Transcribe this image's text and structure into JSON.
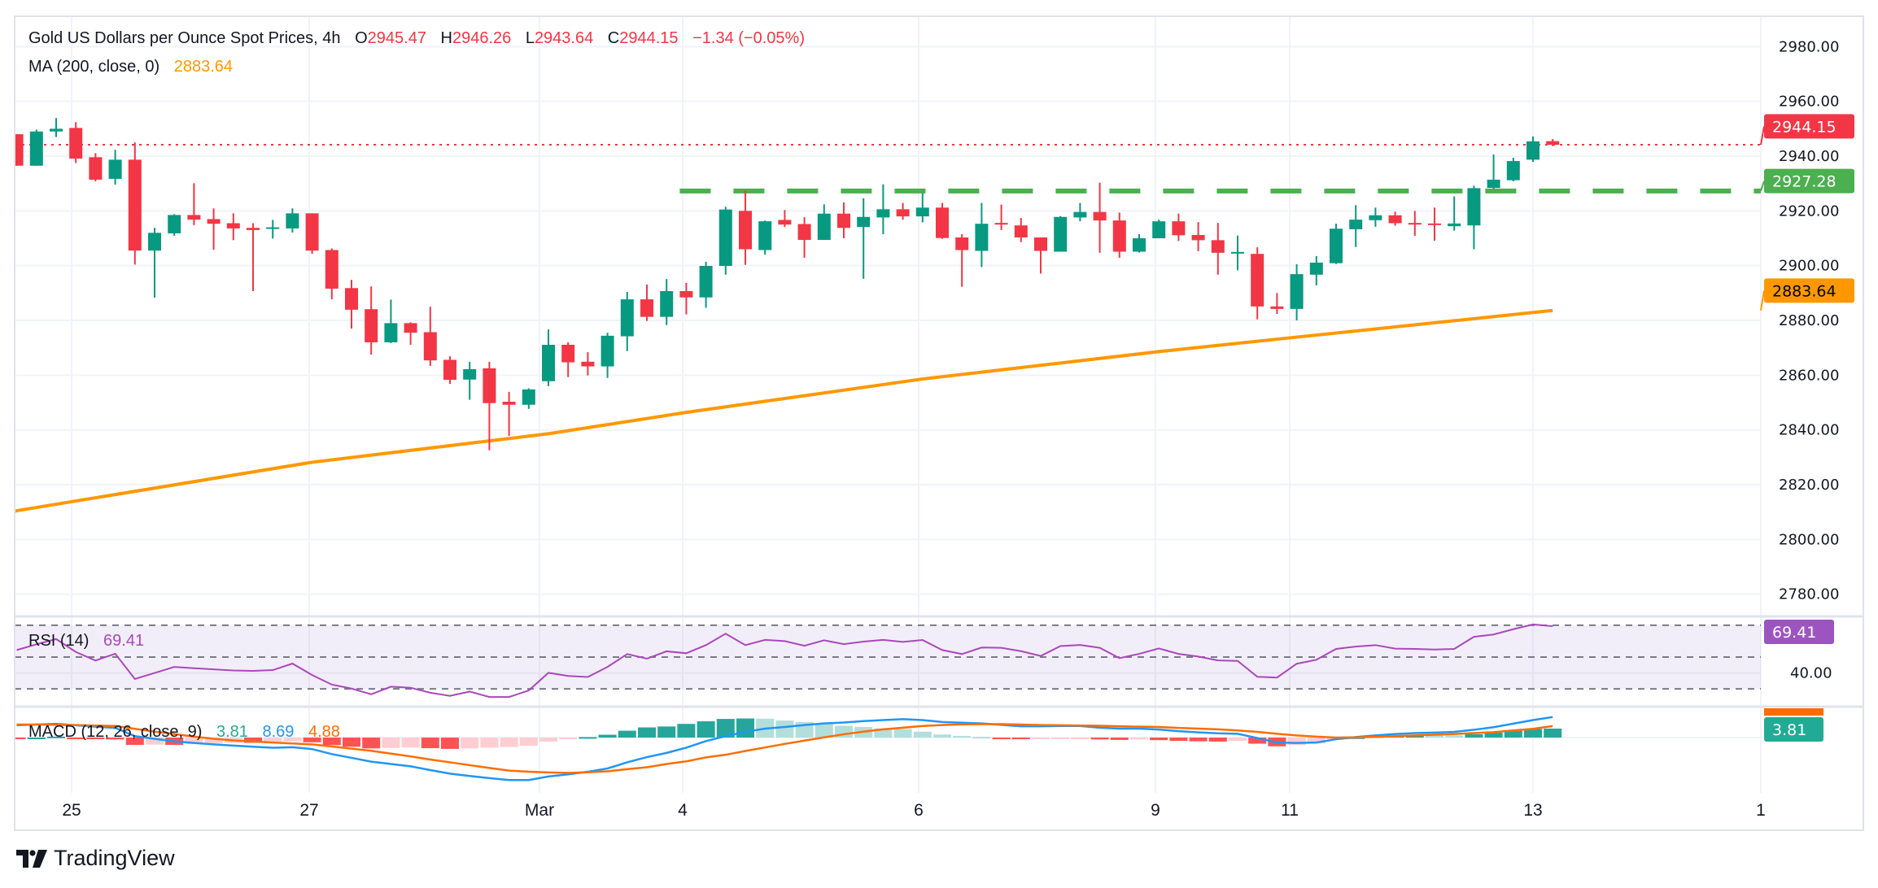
{
  "header": {
    "title": "Gold US Dollars per Ounce Spot Prices, 4h",
    "o_label": "O",
    "o": "2945.47",
    "h_label": "H",
    "h": "2946.26",
    "l_label": "L",
    "l": "2943.64",
    "c_label": "C",
    "c": "2944.15",
    "change": "−1.34 (−0.05%)"
  },
  "ma_legend": {
    "label": "MA (200, close, 0)",
    "value": "2883.64"
  },
  "rsi_legend": {
    "label": "RSI (14)",
    "value": "69.41"
  },
  "macd_legend": {
    "label": "MACD (12, 26, close, 9)",
    "hist": "3.81",
    "macd": "8.69",
    "signal": "4.88"
  },
  "price_axis": {
    "ticks": [
      "2780.00",
      "2800.00",
      "2820.00",
      "2840.00",
      "2860.00",
      "2880.00",
      "2900.00",
      "2920.00",
      "2940.00",
      "2960.00",
      "2980.00"
    ]
  },
  "rsi_axis": {
    "ticks": [
      "40.00"
    ]
  },
  "badges": {
    "last": "2944.15",
    "level": "2927.28",
    "ma": "2883.64",
    "rsi": "69.41",
    "macd": "3.81"
  },
  "time_axis": {
    "labels": [
      "25",
      "27",
      "Mar",
      "4",
      "6",
      "9",
      "11",
      "13",
      "1"
    ]
  },
  "branding": "TradingView",
  "colors": {
    "up": "#089981",
    "down": "#f23645",
    "ma": "#ff9800",
    "level": "#4caf50",
    "rsi": "#ab47bc",
    "macd": "#2196f3",
    "signal": "#ff6d00",
    "hist_up_strong": "#26a69a",
    "hist_up_weak": "#b2dfdb",
    "hist_down_strong": "#ff5252",
    "hist_down_weak": "#ffcdd2"
  },
  "chart_data": [
    {
      "type": "candlestick",
      "title": "Gold US Dollars per Ounce Spot Prices, 4h",
      "ylim": [
        2770,
        2990
      ],
      "grid": true,
      "ohlc": [
        [
          2948,
          2948,
          2936.5,
          2936.5
        ],
        [
          2936.5,
          2949.7,
          2936.5,
          2949
        ],
        [
          2949,
          2953.9,
          2947,
          2950
        ],
        [
          2950.3,
          2952.4,
          2937.5,
          2939.1
        ],
        [
          2939.6,
          2941.1,
          2930.8,
          2931.4
        ],
        [
          2931.7,
          2942.3,
          2929.6,
          2938.7
        ],
        [
          2938.7,
          2945,
          2900.4,
          2905.5
        ],
        [
          2905.5,
          2913.8,
          2888.3,
          2912
        ],
        [
          2911.8,
          2918.8,
          2910.9,
          2918.5
        ],
        [
          2918.5,
          2930.1,
          2914.8,
          2916.8
        ],
        [
          2917,
          2920.9,
          2905.8,
          2915.3
        ],
        [
          2915.5,
          2919.1,
          2909.3,
          2913.6
        ],
        [
          2913.8,
          2915.5,
          2890.7,
          2913
        ],
        [
          2913.6,
          2916.7,
          2909.9,
          2914
        ],
        [
          2913.6,
          2920.9,
          2912.1,
          2919.1
        ],
        [
          2919.1,
          2919.1,
          2904.3,
          2905.5
        ],
        [
          2905.7,
          2906.3,
          2887.7,
          2891.6
        ],
        [
          2891.8,
          2894.8,
          2877,
          2883.9
        ],
        [
          2884.1,
          2892.4,
          2867.5,
          2872
        ],
        [
          2872,
          2887.6,
          2871.7,
          2879
        ],
        [
          2879,
          2879.3,
          2871.1,
          2875.5
        ],
        [
          2875.7,
          2885,
          2863.4,
          2865.4
        ],
        [
          2865.6,
          2866.9,
          2856.8,
          2858.3
        ],
        [
          2858.4,
          2864.9,
          2851,
          2862.2
        ],
        [
          2862.5,
          2864.9,
          2832.6,
          2849.8
        ],
        [
          2850.3,
          2853.9,
          2837.8,
          2849.2
        ],
        [
          2849.2,
          2855.2,
          2847.7,
          2854.8
        ],
        [
          2857.8,
          2876.7,
          2856,
          2871.1
        ],
        [
          2871.1,
          2872,
          2859.3,
          2864.7
        ],
        [
          2864.9,
          2868.4,
          2859.9,
          2863.2
        ],
        [
          2863.2,
          2875.5,
          2859,
          2874.4
        ],
        [
          2874.2,
          2890.4,
          2868.8,
          2887.7
        ],
        [
          2887.7,
          2893.1,
          2879.8,
          2881.3
        ],
        [
          2881.3,
          2895.1,
          2878.3,
          2890.7
        ],
        [
          2890.7,
          2893.7,
          2882.2,
          2888.4
        ],
        [
          2888.4,
          2901.4,
          2884.6,
          2899.9
        ],
        [
          2899.9,
          2921.5,
          2896.7,
          2920.5
        ],
        [
          2920,
          2927.5,
          2900.3,
          2906
        ],
        [
          2905.7,
          2916.5,
          2904,
          2916.2
        ],
        [
          2916.7,
          2920.3,
          2914.1,
          2915
        ],
        [
          2915.2,
          2917.7,
          2902.9,
          2909.4
        ],
        [
          2909.4,
          2922.4,
          2909.4,
          2919
        ],
        [
          2919,
          2923.1,
          2910,
          2913.8
        ],
        [
          2914.1,
          2924.6,
          2895.2,
          2917.8
        ],
        [
          2917.6,
          2929.7,
          2911.5,
          2920.6
        ],
        [
          2920.6,
          2922.9,
          2916.8,
          2918
        ],
        [
          2918,
          2926.5,
          2915.8,
          2921.2
        ],
        [
          2921.2,
          2922.9,
          2909.8,
          2910.1
        ],
        [
          2910.3,
          2911.5,
          2892.3,
          2905.7
        ],
        [
          2905.4,
          2922.9,
          2899.5,
          2915.3
        ],
        [
          2915.6,
          2922.3,
          2913,
          2915
        ],
        [
          2914.7,
          2917.4,
          2908.6,
          2910.3
        ],
        [
          2910.3,
          2910.3,
          2897.1,
          2905.4
        ],
        [
          2905.1,
          2918.1,
          2905.1,
          2917.8
        ],
        [
          2917.6,
          2922.9,
          2916.2,
          2919.6
        ],
        [
          2919.6,
          2930.3,
          2904.7,
          2916.5
        ],
        [
          2916.5,
          2919.4,
          2902.9,
          2905.1
        ],
        [
          2905.1,
          2911.5,
          2904.8,
          2910
        ],
        [
          2910,
          2916.8,
          2910,
          2916.2
        ],
        [
          2916.2,
          2919,
          2909,
          2911.1
        ],
        [
          2911.2,
          2915.9,
          2905.3,
          2909.3
        ],
        [
          2909.3,
          2915.6,
          2896.7,
          2904.7
        ],
        [
          2904.8,
          2911,
          2898.3,
          2905
        ],
        [
          2904.3,
          2906.7,
          2880.4,
          2885.1
        ],
        [
          2885.1,
          2890,
          2882.4,
          2884.2
        ],
        [
          2884.2,
          2900.5,
          2880,
          2896.9
        ],
        [
          2896.7,
          2903.5,
          2892.8,
          2901.1
        ],
        [
          2900.9,
          2915.3,
          2900.6,
          2913.5
        ],
        [
          2913.3,
          2922.1,
          2906.8,
          2916.8
        ],
        [
          2916.6,
          2921.2,
          2914.2,
          2918.4
        ],
        [
          2918.4,
          2919.7,
          2914.6,
          2915.5
        ],
        [
          2915.6,
          2920,
          2910.9,
          2915
        ],
        [
          2915.4,
          2921.2,
          2909.1,
          2915
        ],
        [
          2914.4,
          2925.3,
          2912.8,
          2915.4
        ],
        [
          2914.7,
          2929.2,
          2906,
          2928.3
        ],
        [
          2928.4,
          2940.6,
          2928,
          2931.4
        ],
        [
          2931.2,
          2939.4,
          2930.8,
          2938.2
        ],
        [
          2938.7,
          2947.2,
          2937.9,
          2945.4
        ],
        [
          2945.47,
          2946.26,
          2943.64,
          2944.15
        ]
      ],
      "ma200_points": [
        [
          0,
          2810.5
        ],
        [
          15,
          2828.2
        ],
        [
          27,
          2838.6
        ],
        [
          34,
          2846.4
        ],
        [
          46,
          2858.6
        ],
        [
          58,
          2868.6
        ],
        [
          65,
          2873.9
        ],
        [
          78,
          2883.64
        ]
      ],
      "last_price": 2944.15,
      "level": {
        "value": 2927.28,
        "from_bar": 34
      }
    },
    {
      "type": "line",
      "name": "RSI (14)",
      "ylim": [
        19,
        76
      ],
      "bands": [
        30,
        50,
        70
      ],
      "values": [
        54.4,
        58,
        61.3,
        53.2,
        47.8,
        52.1,
        36.2,
        40,
        43.8,
        43,
        42.3,
        41.6,
        41.3,
        41.8,
        45.9,
        38.7,
        32.7,
        30.2,
        26.6,
        31.4,
        30.7,
        27.6,
        25.6,
        28.3,
        24.9,
        24.9,
        29,
        40.1,
        38.1,
        37.5,
        43.8,
        51.9,
        49,
        53.6,
        52.4,
        57.5,
        64.7,
        57.5,
        60.8,
        60,
        57.1,
        60.5,
        58.1,
        59.7,
        60.8,
        59.5,
        60.7,
        54.4,
        51.9,
        56,
        55.8,
        53.7,
        50.7,
        56.9,
        57.6,
        55.8,
        49.3,
        52,
        55.4,
        52,
        50.3,
        47.9,
        47.6,
        37.6,
        37.1,
        45.8,
        48.3,
        55.1,
        56.6,
        57.5,
        55.3,
        55.1,
        54.7,
        55.1,
        62.7,
        64.2,
        67.5,
        70.5,
        69.41
      ]
    },
    {
      "type": "line",
      "name": "MACD (12, 26, close, 9)",
      "ylim": [
        -22,
        13
      ],
      "macd": [
        5.2,
        5.5,
        5.8,
        5.2,
        4.6,
        4.1,
        0.6,
        -0.5,
        -1.6,
        -2.3,
        -2.9,
        -3.4,
        -3.9,
        -4.3,
        -4.1,
        -4.9,
        -7,
        -8.6,
        -10.2,
        -11.2,
        -12.2,
        -13.8,
        -15.3,
        -16.3,
        -17.2,
        -18,
        -18,
        -16.5,
        -15.6,
        -14.5,
        -13.1,
        -10.5,
        -8.3,
        -6.5,
        -4.3,
        -1.5,
        0.6,
        2.4,
        3.8,
        4.5,
        5.3,
        6,
        6.4,
        7,
        7.4,
        7.8,
        7.4,
        6.6,
        6.3,
        6,
        5.4,
        4.8,
        4.8,
        4.9,
        4.9,
        4.2,
        3.8,
        3.8,
        3.4,
        2.7,
        2.2,
        1.8,
        1.6,
        -0.2,
        -2.1,
        -2.3,
        -2.1,
        -0.7,
        0.2,
        0.9,
        1.5,
        1.9,
        2.1,
        2.4,
        3.3,
        4.4,
        5.9,
        7.4,
        8.69
      ],
      "signal": [
        5.5,
        5.5,
        5.4,
        5.3,
        5.1,
        4.9,
        3.7,
        2.5,
        1.5,
        0.4,
        -0.5,
        -1.2,
        -1.7,
        -2.1,
        -2.5,
        -2.9,
        -3.8,
        -4.7,
        -5.6,
        -6.8,
        -8,
        -9.3,
        -10.5,
        -11.7,
        -12.9,
        -14,
        -14.5,
        -14.8,
        -15,
        -14.7,
        -14.3,
        -13.4,
        -12.6,
        -11.2,
        -10.1,
        -8.4,
        -7.3,
        -5.7,
        -4.2,
        -2.7,
        -1.3,
        0.1,
        1.4,
        2.5,
        3.5,
        4.2,
        4.9,
        5.3,
        5.6,
        5.7,
        5.7,
        5.5,
        5.3,
        5.2,
        5.1,
        5,
        4.8,
        4.6,
        4.5,
        4.1,
        3.8,
        3.5,
        3,
        2.4,
        1.6,
        0.9,
        0.4,
        0,
        0.1,
        0.3,
        0.6,
        0.9,
        1.2,
        1.5,
        1.9,
        2.3,
        3,
        3.7,
        4.88
      ]
    }
  ]
}
